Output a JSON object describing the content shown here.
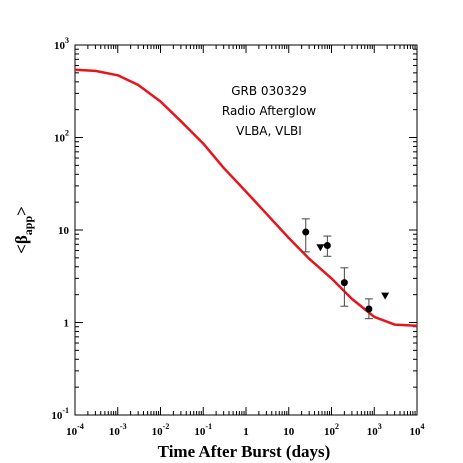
{
  "chart_data": {
    "type": "scatter",
    "xlabel": "Time After Burst (days)",
    "ylabel": {
      "main": "<β",
      "sub": "app",
      "tail": ">"
    },
    "xscale": "log",
    "yscale": "log",
    "xlim": [
      0.0001,
      10000
    ],
    "ylim": [
      0.1,
      1000
    ],
    "x_ticks": [
      {
        "base": "10",
        "exp": "-4"
      },
      {
        "base": "10",
        "exp": "-3"
      },
      {
        "base": "10",
        "exp": "-2"
      },
      {
        "base": "10",
        "exp": "-1"
      },
      {
        "base": "1",
        "exp": ""
      },
      {
        "base": "10",
        "exp": ""
      },
      {
        "base": "10",
        "exp": "2"
      },
      {
        "base": "10",
        "exp": "3"
      },
      {
        "base": "10",
        "exp": "4"
      }
    ],
    "y_ticks": [
      {
        "base": "10",
        "exp": "-1"
      },
      {
        "base": "1",
        "exp": ""
      },
      {
        "base": "10",
        "exp": ""
      },
      {
        "base": "10",
        "exp": "2"
      },
      {
        "base": "10",
        "exp": "3"
      }
    ],
    "annotation": [
      "GRB 030329",
      "Radio Afterglow",
      "VLBA, VLBI"
    ],
    "curve_color": "#e8141c",
    "curve": {
      "x": [
        0.0001,
        0.0003,
        0.001,
        0.003,
        0.01,
        0.03,
        0.1,
        0.3,
        1,
        3,
        10,
        30,
        100,
        300,
        1000,
        3000,
        10000
      ],
      "y": [
        540,
        525,
        470,
        370,
        245,
        150,
        86,
        47,
        26,
        15,
        8.2,
        4.9,
        3.0,
        1.8,
        1.15,
        0.95,
        0.92
      ]
    },
    "points": [
      {
        "x": 25,
        "y": 9.5,
        "ylo": 5.8,
        "yhi": 13.2
      },
      {
        "x": 80,
        "y": 6.8,
        "ylo": 5.2,
        "yhi": 8.6
      },
      {
        "x": 200,
        "y": 2.7,
        "ylo": 1.5,
        "yhi": 3.9
      },
      {
        "x": 750,
        "y": 1.4,
        "ylo": 1.1,
        "yhi": 1.8
      }
    ],
    "upper_limits": [
      {
        "x": 55,
        "y": 6.5
      },
      {
        "x": 1800,
        "y": 1.95
      }
    ]
  }
}
